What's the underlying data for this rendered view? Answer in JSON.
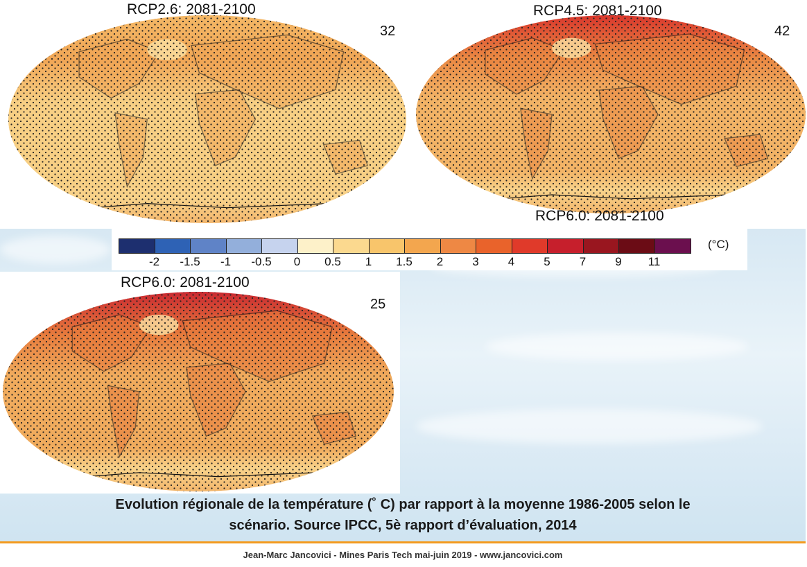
{
  "panels": [
    {
      "title": "RCP2.6: 2081-2100",
      "count": "32",
      "base": "#f7cf84",
      "north": "#f4b866",
      "hot": "#f0a656"
    },
    {
      "title": "RCP4.5: 2081-2100",
      "count": "42",
      "base": "#f2b366",
      "north": "#d8342b",
      "hot": "#ea8843"
    },
    {
      "title": "RCP6.0: 2081-2100",
      "count": "25",
      "base": "#f0ab5d",
      "north": "#c92630",
      "hot": "#e77c3d"
    }
  ],
  "cutoff_title": "RCP6.0: 2081-2100",
  "legend": {
    "unit": "(°C)",
    "colors": [
      "#1d2f6f",
      "#2e62b5",
      "#5f83c7",
      "#93afdb",
      "#c6d3ee",
      "#fdf1c9",
      "#fbd98f",
      "#f8c56b",
      "#f3a64e",
      "#ee8844",
      "#e9632b",
      "#e03a2a",
      "#c61f2c",
      "#99161f",
      "#6b0c15",
      "#6b0f4e"
    ],
    "ticks": [
      "-2",
      "-1.5",
      "-1",
      "-0.5",
      "0",
      "0.5",
      "1",
      "1.5",
      "2",
      "3",
      "4",
      "5",
      "7",
      "9",
      "11"
    ]
  },
  "caption": {
    "line1": "Evolution régionale de la température (˚  C) par rapport à la moyenne 1986-2005 selon le",
    "line2": "scénario. Source IPCC, 5è rapport d’évaluation, 2014"
  },
  "footer": "Jean-Marc Jancovici - Mines Paris Tech mai-juin 2019 - www.jancovici.com"
}
